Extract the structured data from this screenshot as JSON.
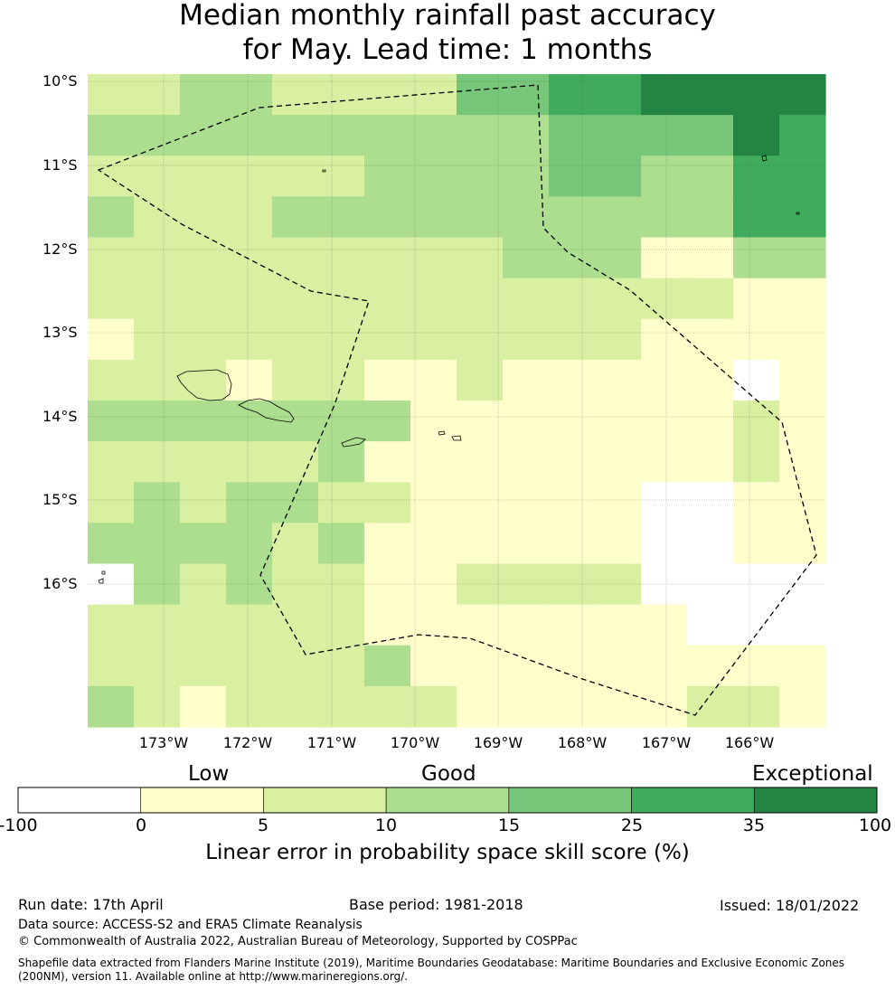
{
  "title": {
    "line1": "Median monthly rainfall past accuracy",
    "line2": "for May. Lead time: 1 months"
  },
  "map": {
    "lat_labels": [
      "10°S",
      "11°S",
      "12°S",
      "13°S",
      "14°S",
      "15°S",
      "16°S"
    ],
    "lon_labels": [
      "173°W",
      "172°W",
      "171°W",
      "170°W",
      "169°W",
      "168°W",
      "167°W",
      "166°W"
    ],
    "skill_grid_classes": [
      [
        2,
        2,
        3,
        3,
        2,
        2,
        2,
        2,
        4,
        4,
        5,
        5,
        6,
        6,
        6,
        6
      ],
      [
        3,
        3,
        3,
        3,
        3,
        3,
        3,
        3,
        3,
        3,
        4,
        4,
        4,
        4,
        6,
        5
      ],
      [
        2,
        2,
        2,
        2,
        2,
        2,
        3,
        3,
        3,
        3,
        4,
        4,
        3,
        3,
        5,
        5
      ],
      [
        3,
        2,
        2,
        2,
        3,
        3,
        3,
        3,
        3,
        3,
        3,
        3,
        3,
        3,
        5,
        5
      ],
      [
        2,
        2,
        2,
        2,
        2,
        2,
        2,
        2,
        2,
        3,
        3,
        3,
        1,
        1,
        3,
        3
      ],
      [
        2,
        2,
        2,
        2,
        2,
        2,
        2,
        2,
        2,
        2,
        2,
        2,
        2,
        2,
        1,
        1
      ],
      [
        1,
        2,
        2,
        2,
        2,
        2,
        2,
        2,
        2,
        2,
        2,
        2,
        1,
        1,
        1,
        1
      ],
      [
        2,
        2,
        2,
        1,
        2,
        2,
        1,
        1,
        2,
        1,
        1,
        1,
        1,
        1,
        0,
        1
      ],
      [
        3,
        3,
        3,
        3,
        3,
        3,
        3,
        1,
        1,
        1,
        1,
        1,
        1,
        1,
        2,
        1
      ],
      [
        2,
        2,
        2,
        2,
        2,
        3,
        1,
        1,
        1,
        1,
        1,
        1,
        1,
        1,
        2,
        1
      ],
      [
        2,
        3,
        2,
        3,
        3,
        2,
        2,
        1,
        1,
        1,
        1,
        1,
        0,
        0,
        1,
        1
      ],
      [
        3,
        3,
        3,
        3,
        2,
        3,
        1,
        1,
        1,
        1,
        1,
        1,
        0,
        0,
        1,
        1
      ],
      [
        0,
        3,
        2,
        3,
        2,
        2,
        1,
        1,
        2,
        2,
        2,
        2,
        0,
        0,
        0,
        0
      ],
      [
        2,
        2,
        2,
        2,
        2,
        2,
        1,
        1,
        1,
        1,
        1,
        1,
        1,
        0,
        0,
        0
      ],
      [
        2,
        2,
        2,
        2,
        2,
        2,
        3,
        1,
        1,
        1,
        1,
        1,
        1,
        1,
        1,
        1
      ],
      [
        3,
        2,
        1,
        2,
        2,
        2,
        2,
        2,
        1,
        1,
        1,
        1,
        1,
        2,
        2,
        1
      ]
    ],
    "colors": [
      "#ffffff",
      "#ffffcc",
      "#d9f0a3",
      "#addd8e",
      "#78c679",
      "#41ab5d",
      "#238443"
    ]
  },
  "colorbar": {
    "categories": [
      "Low",
      "Good",
      "Exceptional"
    ],
    "ticks": [
      "-100",
      "0",
      "5",
      "10",
      "15",
      "25",
      "35",
      "100"
    ],
    "caption": "Linear error in probability space skill score (%)"
  },
  "footer": {
    "run_date": "Run date: 17th April",
    "base_period": "Base period: 1981-2018",
    "issued": "Issued: 18/01/2022",
    "data_source": "Data source: ACCESS-S2 and ERA5 Climate Reanalysis",
    "copyright": "© Commonwealth of Australia 2022, Australian Bureau of Meteorology, Supported by COSPPac",
    "shapefile": "Shapefile data extracted from Flanders Marine Institute (2019), Maritime Boundaries Geodatabase: Maritime Boundaries and Exclusive Economic Zones (200NM), version 11. Available online at http://www.marineregions.org/."
  }
}
